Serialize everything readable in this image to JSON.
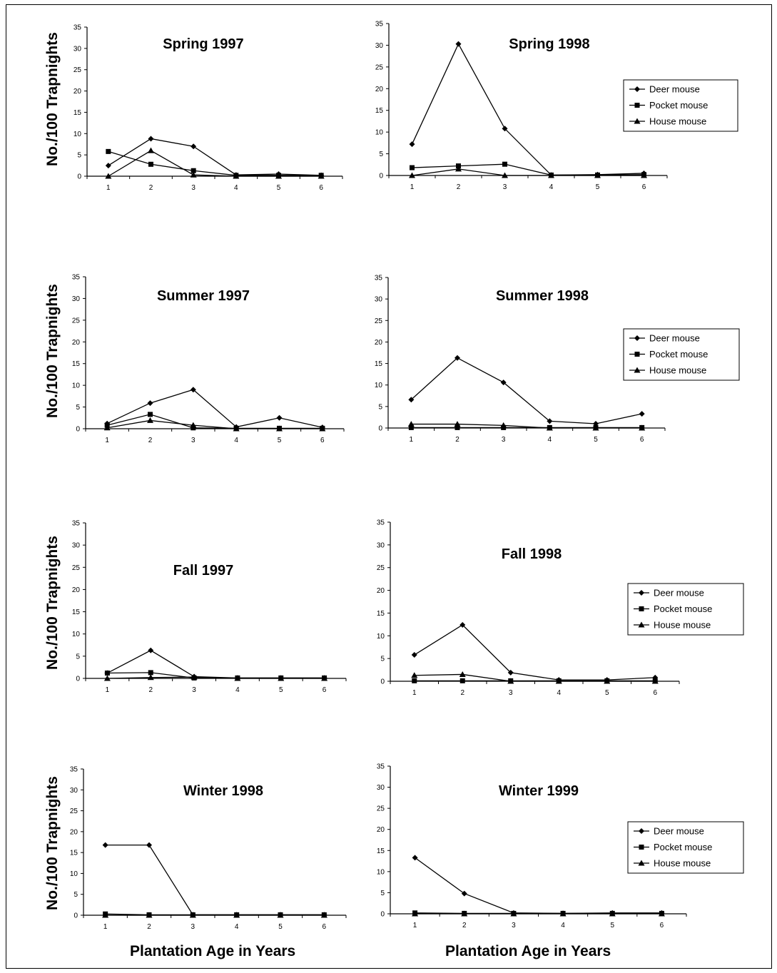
{
  "figure": {
    "y_label": "No./100 Trapnights",
    "x_label": "Plantation Age in Years"
  },
  "chart_data": [
    {
      "type": "line",
      "title": "Spring 1997",
      "ylim": [
        0,
        35
      ],
      "yticks": [
        0,
        5,
        10,
        15,
        20,
        25,
        30,
        35
      ],
      "categories": [
        "1",
        "2",
        "3",
        "4",
        "5",
        "6"
      ],
      "legend": false,
      "series": [
        {
          "name": "Deer mouse",
          "marker": "diamond",
          "values": [
            2.5,
            8.8,
            7.0,
            0.3,
            0.5,
            0.2
          ]
        },
        {
          "name": "Pocket mouse",
          "marker": "square",
          "values": [
            5.8,
            2.8,
            1.3,
            0.2,
            0.2,
            0.2
          ]
        },
        {
          "name": "House mouse",
          "marker": "triangle",
          "values": [
            0,
            6.0,
            0.3,
            0,
            0,
            0
          ]
        }
      ]
    },
    {
      "type": "line",
      "title": "Spring 1998",
      "ylim": [
        0,
        35
      ],
      "yticks": [
        0,
        5,
        10,
        15,
        20,
        25,
        30,
        35
      ],
      "categories": [
        "1",
        "2",
        "3",
        "4",
        "5",
        "6"
      ],
      "legend": true,
      "series": [
        {
          "name": "Deer mouse",
          "marker": "diamond",
          "values": [
            7.2,
            30.3,
            10.8,
            0.1,
            0.2,
            0.5
          ]
        },
        {
          "name": "Pocket mouse",
          "marker": "square",
          "values": [
            1.8,
            2.2,
            2.6,
            0.1,
            0.1,
            0.2
          ]
        },
        {
          "name": "House mouse",
          "marker": "triangle",
          "values": [
            0,
            1.5,
            0,
            0,
            0,
            0
          ]
        }
      ]
    },
    {
      "type": "line",
      "title": "Summer 1997",
      "ylim": [
        0,
        35
      ],
      "yticks": [
        0,
        5,
        10,
        15,
        20,
        25,
        30,
        35
      ],
      "categories": [
        "1",
        "2",
        "3",
        "4",
        "5",
        "6"
      ],
      "legend": false,
      "series": [
        {
          "name": "Deer mouse",
          "marker": "diamond",
          "values": [
            1.2,
            5.9,
            9.0,
            0.4,
            2.5,
            0.3
          ]
        },
        {
          "name": "Pocket mouse",
          "marker": "square",
          "values": [
            0.8,
            3.3,
            0.2,
            0.1,
            0.1,
            0.1
          ]
        },
        {
          "name": "House mouse",
          "marker": "triangle",
          "values": [
            0.2,
            1.9,
            0.8,
            0,
            0,
            0
          ]
        }
      ]
    },
    {
      "type": "line",
      "title": "Summer 1998",
      "ylim": [
        0,
        35
      ],
      "yticks": [
        0,
        5,
        10,
        15,
        20,
        25,
        30,
        35
      ],
      "categories": [
        "1",
        "2",
        "3",
        "4",
        "5",
        "6"
      ],
      "legend": true,
      "series": [
        {
          "name": "Deer mouse",
          "marker": "diamond",
          "values": [
            6.6,
            16.3,
            10.6,
            1.6,
            1.0,
            3.3
          ]
        },
        {
          "name": "Pocket mouse",
          "marker": "square",
          "values": [
            0.1,
            0.1,
            0.1,
            0.1,
            0.1,
            0.1
          ]
        },
        {
          "name": "House mouse",
          "marker": "triangle",
          "values": [
            0.9,
            0.9,
            0.6,
            0,
            0,
            0
          ]
        }
      ]
    },
    {
      "type": "line",
      "title": "Fall 1997",
      "ylim": [
        0,
        35
      ],
      "yticks": [
        0,
        5,
        10,
        15,
        20,
        25,
        30,
        35
      ],
      "categories": [
        "1",
        "2",
        "3",
        "4",
        "5",
        "6"
      ],
      "legend": false,
      "series": [
        {
          "name": "Deer mouse",
          "marker": "diamond",
          "values": [
            1.2,
            6.3,
            0.4,
            0.1,
            0.1,
            0.1
          ]
        },
        {
          "name": "Pocket mouse",
          "marker": "square",
          "values": [
            1.2,
            1.3,
            0.1,
            0.1,
            0.1,
            0.1
          ]
        },
        {
          "name": "House mouse",
          "marker": "triangle",
          "values": [
            0,
            0.2,
            0.3,
            0,
            0,
            0
          ]
        }
      ]
    },
    {
      "type": "line",
      "title": "Fall 1998",
      "ylim": [
        0,
        35
      ],
      "yticks": [
        0,
        5,
        10,
        15,
        20,
        25,
        30,
        35
      ],
      "categories": [
        "1",
        "2",
        "3",
        "4",
        "5",
        "6"
      ],
      "legend": true,
      "series": [
        {
          "name": "Deer mouse",
          "marker": "diamond",
          "values": [
            5.8,
            12.4,
            1.9,
            0.3,
            0.3,
            0.8
          ]
        },
        {
          "name": "Pocket mouse",
          "marker": "square",
          "values": [
            0.1,
            0.1,
            0.1,
            0.1,
            0.1,
            0.1
          ]
        },
        {
          "name": "House mouse",
          "marker": "triangle",
          "values": [
            1.3,
            1.5,
            0,
            0,
            0,
            0
          ]
        }
      ]
    },
    {
      "type": "line",
      "title": "Winter 1998",
      "ylim": [
        0,
        35
      ],
      "yticks": [
        0,
        5,
        10,
        15,
        20,
        25,
        30,
        35
      ],
      "categories": [
        "1",
        "2",
        "3",
        "4",
        "5",
        "6"
      ],
      "legend": false,
      "series": [
        {
          "name": "Deer mouse",
          "marker": "diamond",
          "values": [
            16.8,
            16.8,
            0.1,
            0.1,
            0.1,
            0.1
          ]
        },
        {
          "name": "Pocket mouse",
          "marker": "square",
          "values": [
            0.3,
            0.1,
            0.1,
            0.1,
            0.1,
            0.1
          ]
        },
        {
          "name": "House mouse",
          "marker": "triangle",
          "values": [
            0,
            0,
            0,
            0,
            0,
            0
          ]
        }
      ]
    },
    {
      "type": "line",
      "title": "Winter 1999",
      "ylim": [
        0,
        35
      ],
      "yticks": [
        0,
        5,
        10,
        15,
        20,
        25,
        30,
        35
      ],
      "categories": [
        "1",
        "2",
        "3",
        "4",
        "5",
        "6"
      ],
      "legend": true,
      "series": [
        {
          "name": "Deer mouse",
          "marker": "diamond",
          "values": [
            13.3,
            4.8,
            0.2,
            0.1,
            0.2,
            0.2
          ]
        },
        {
          "name": "Pocket mouse",
          "marker": "square",
          "values": [
            0.2,
            0.1,
            0.1,
            0.1,
            0.1,
            0.1
          ]
        },
        {
          "name": "House mouse",
          "marker": "triangle",
          "values": [
            0,
            0,
            0,
            0,
            0,
            0
          ]
        }
      ]
    }
  ]
}
